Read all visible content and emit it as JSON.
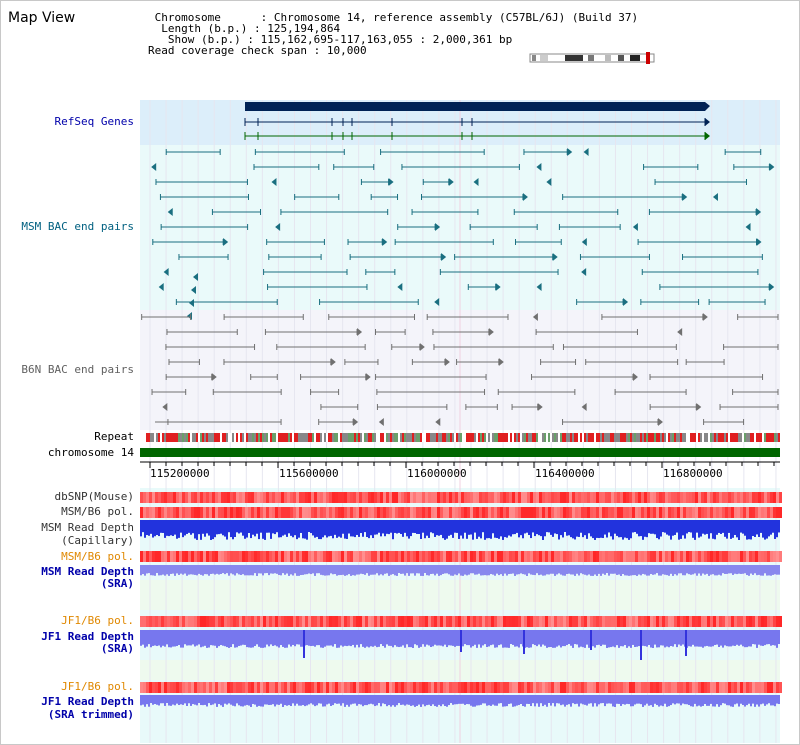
{
  "title": "Map View",
  "info": {
    "chromosome_label": "Chromosome",
    "chromosome_value": "Chromosome 14, reference assembly (C57BL/6J) (Build 37)",
    "length_label": "Length (b.p.)",
    "length_value": "125,194,864",
    "show_label": "Show (b.p.)",
    "show_value": "115,162,695-117,163,055 : 2,000,361 bp",
    "coverage_label": "Read coverage check span",
    "coverage_value": "10,000"
  },
  "tracks": {
    "refseq": "RefSeq Genes",
    "msm_bac": "MSM BAC end pairs",
    "b6n_bac": "B6N BAC end pairs",
    "repeat": "Repeat",
    "chromosome": "chromosome 14",
    "dbsnp": "dbSNP(Mouse)",
    "msm_b6_pol_1": "MSM/B6 pol.",
    "msm_read_depth_cap_1": "MSM Read Depth",
    "msm_read_depth_cap_2": "(Capillary)",
    "msm_b6_pol_2": "MSM/B6 pol.",
    "msm_read_depth_sra_1": "MSM Read Depth",
    "msm_read_depth_sra_2": "(SRA)",
    "jf1_b6_pol_1": "JF1/B6 pol.",
    "jf1_read_depth_sra_1": "JF1 Read Depth",
    "jf1_read_depth_sra_2": "(SRA)",
    "jf1_b6_pol_2": "JF1/B6 pol.",
    "jf1_read_depth_trim_1": "JF1 Read Depth",
    "jf1_read_depth_trim_2": "(SRA trimmed)"
  },
  "axis": {
    "ticks": [
      "115200000",
      "115600000",
      "116000000",
      "116400000",
      "116800000"
    ]
  },
  "colors": {
    "refseq_label": "#0000aa",
    "msm_label": "#006080",
    "b6n_label": "#606060",
    "orange_label": "#e08800",
    "blue_label": "#0000aa",
    "chromosome_bar": "#006600",
    "gene_bar": "#002255",
    "depth_blue": "#2222dd",
    "depth_light": "#8888ee"
  }
}
